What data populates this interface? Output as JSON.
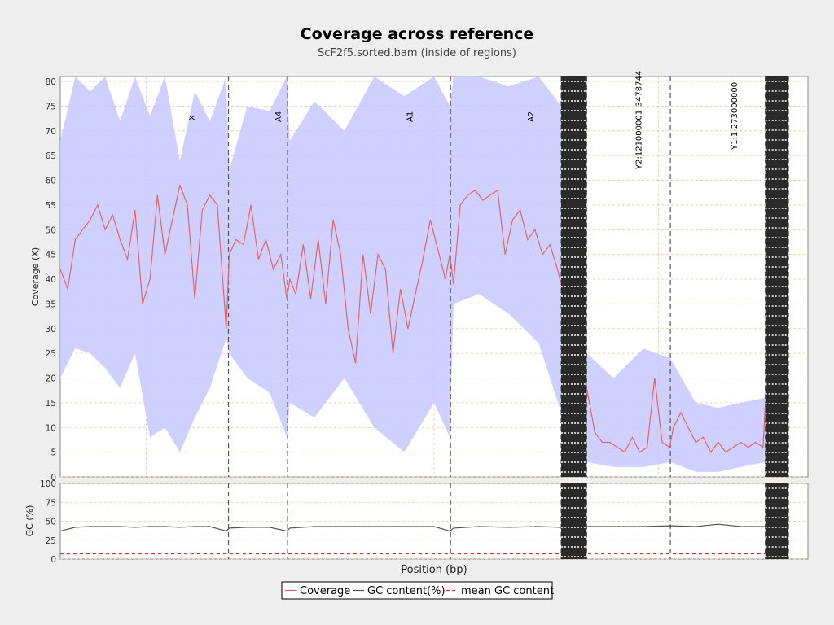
{
  "chart_data": {
    "type": "line",
    "title": "Coverage across reference",
    "subtitle": "ScF2f5.sorted.bam (inside of regions)",
    "xlabel": "Position (bp)",
    "top_panel": {
      "ylabel": "Coverage (X)",
      "ylim": [
        0,
        81
      ],
      "yticks": [
        0,
        5,
        10,
        15,
        20,
        25,
        30,
        35,
        40,
        45,
        50,
        55,
        60,
        65,
        70,
        75,
        80
      ]
    },
    "bottom_panel": {
      "ylabel": "GC (%)",
      "ylim": [
        0,
        100
      ],
      "yticks": [
        0,
        25,
        50,
        75,
        100
      ]
    },
    "regions": [
      "X",
      "A4",
      "A1",
      "A2",
      "",
      "Y2:121000001-3478744",
      "Y1:1-273000000",
      ""
    ],
    "region_boundaries": [
      0.0,
      0.225,
      0.304,
      0.522,
      0.67,
      0.704,
      0.816,
      0.943,
      0.974,
      1.0
    ],
    "dense_block_ranges": [
      [
        0.67,
        0.704
      ],
      [
        0.943,
        0.974
      ]
    ],
    "legend": [
      "Coverage",
      "GC content(%)",
      "mean GC content"
    ],
    "legend_placement": "bottom-center",
    "grid": true,
    "series": [
      {
        "name": "Coverage",
        "x": [
          0.0,
          0.01,
          0.02,
          0.03,
          0.04,
          0.05,
          0.06,
          0.07,
          0.08,
          0.09,
          0.1,
          0.11,
          0.12,
          0.13,
          0.14,
          0.15,
          0.16,
          0.17,
          0.18,
          0.19,
          0.2,
          0.21,
          0.222,
          0.226,
          0.235,
          0.245,
          0.255,
          0.265,
          0.275,
          0.285,
          0.295,
          0.303,
          0.307,
          0.315,
          0.325,
          0.335,
          0.345,
          0.355,
          0.365,
          0.375,
          0.385,
          0.395,
          0.405,
          0.415,
          0.425,
          0.435,
          0.445,
          0.455,
          0.465,
          0.475,
          0.485,
          0.495,
          0.505,
          0.515,
          0.521,
          0.526,
          0.535,
          0.545,
          0.555,
          0.565,
          0.575,
          0.585,
          0.595,
          0.605,
          0.615,
          0.625,
          0.635,
          0.645,
          0.655,
          0.665,
          0.67,
          0.704,
          0.715,
          0.725,
          0.735,
          0.745,
          0.755,
          0.765,
          0.775,
          0.785,
          0.795,
          0.805,
          0.815,
          0.82,
          0.83,
          0.84,
          0.85,
          0.86,
          0.87,
          0.88,
          0.89,
          0.9,
          0.91,
          0.92,
          0.93,
          0.94,
          0.943
        ],
        "y": [
          42,
          38,
          48,
          50,
          52,
          55,
          50,
          53,
          48,
          44,
          54,
          35,
          40,
          57,
          45,
          52,
          59,
          55,
          36,
          54,
          57,
          55,
          30,
          45,
          48,
          47,
          55,
          44,
          48,
          42,
          45,
          36,
          40,
          37,
          47,
          36,
          48,
          35,
          52,
          45,
          30,
          23,
          45,
          33,
          45,
          42,
          25,
          38,
          30,
          37,
          44,
          52,
          46,
          40,
          45,
          39,
          55,
          57,
          58,
          56,
          57,
          58,
          45,
          52,
          54,
          48,
          50,
          45,
          47,
          42,
          39,
          18,
          9,
          7,
          7,
          6,
          5,
          8,
          5,
          6,
          20,
          7,
          6,
          10,
          13,
          10,
          7,
          8,
          5,
          7,
          5,
          6,
          7,
          6,
          7,
          6,
          15
        ]
      },
      {
        "name": "GC content(%)",
        "x": [
          0.0,
          0.02,
          0.04,
          0.06,
          0.08,
          0.1,
          0.12,
          0.14,
          0.16,
          0.18,
          0.2,
          0.222,
          0.226,
          0.25,
          0.28,
          0.303,
          0.307,
          0.34,
          0.38,
          0.42,
          0.46,
          0.5,
          0.521,
          0.526,
          0.56,
          0.6,
          0.64,
          0.67,
          0.704,
          0.74,
          0.78,
          0.816,
          0.85,
          0.88,
          0.91,
          0.943
        ],
        "y": [
          37,
          42,
          43,
          43,
          43,
          42,
          43,
          43,
          42,
          43,
          43,
          37,
          41,
          42,
          42,
          37,
          41,
          43,
          43,
          43,
          43,
          43,
          37,
          41,
          43,
          42,
          43,
          42,
          43,
          43,
          43,
          44,
          43,
          46,
          43,
          43
        ]
      },
      {
        "name": "mean GC content",
        "value": 7
      }
    ],
    "coverage_band": {
      "x": [
        0.0,
        0.02,
        0.04,
        0.06,
        0.08,
        0.1,
        0.12,
        0.14,
        0.16,
        0.18,
        0.2,
        0.222,
        0.226,
        0.25,
        0.28,
        0.303,
        0.307,
        0.34,
        0.38,
        0.42,
        0.46,
        0.5,
        0.521,
        0.526,
        0.56,
        0.6,
        0.64,
        0.67,
        0.704,
        0.74,
        0.78,
        0.816,
        0.85,
        0.88,
        0.91,
        0.943
      ],
      "upper": [
        68,
        81,
        78,
        81,
        72,
        81,
        73,
        81,
        64,
        78,
        72,
        81,
        62,
        75,
        74,
        81,
        68,
        76,
        70,
        81,
        77,
        81,
        75,
        81,
        81,
        79,
        81,
        75,
        25,
        20,
        26,
        24,
        15,
        14,
        15,
        16
      ],
      "lower": [
        20,
        26,
        25,
        22,
        18,
        25,
        8,
        10,
        5,
        12,
        18,
        28,
        25,
        20,
        17,
        8,
        15,
        12,
        20,
        10,
        5,
        15,
        8,
        35,
        37,
        33,
        27,
        13,
        3,
        2,
        2,
        3,
        1,
        1,
        2,
        3
      ]
    }
  }
}
